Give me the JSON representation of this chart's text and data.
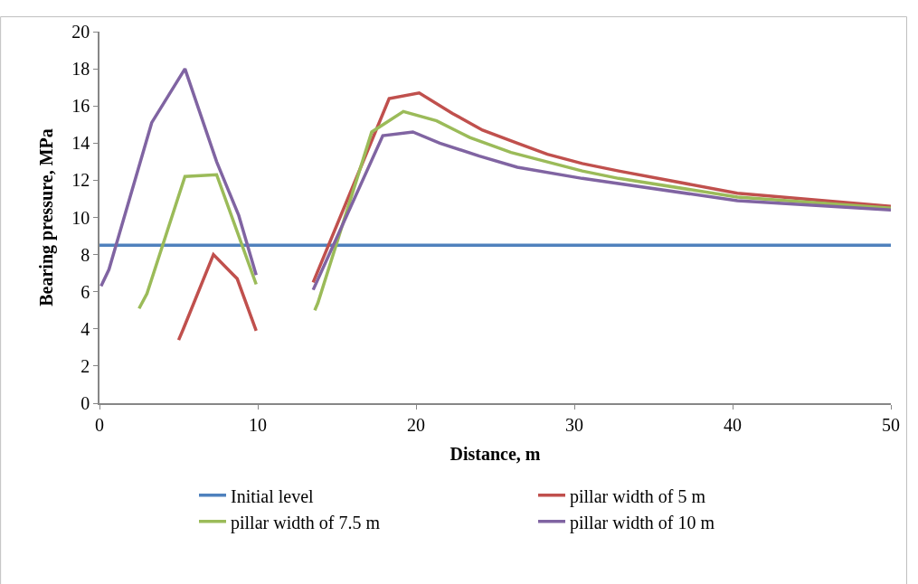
{
  "chart_data": {
    "type": "line",
    "xlabel": "Distance, m",
    "ylabel": "Bearing pressure, MPa",
    "xlim": [
      0,
      50
    ],
    "xticks": [
      0,
      10,
      20,
      30,
      40,
      50
    ],
    "ylim": [
      0,
      20
    ],
    "yticks": [
      0,
      2,
      4,
      6,
      8,
      10,
      12,
      14,
      16,
      18,
      20
    ],
    "legend": "bottom",
    "marker": "none",
    "line_style": "solid",
    "series": [
      {
        "name": "Initial level",
        "color": "#4f81bd",
        "x": [
          0,
          50
        ],
        "values": [
          8.5,
          8.5
        ]
      },
      {
        "name": "pillar width of 5 m",
        "color": "#c0504d",
        "x": [
          5.0,
          5.3,
          7.2,
          8.7,
          9.9,
          12,
          13.5,
          18.3,
          20.2,
          22.3,
          24.2,
          26.4,
          28.3,
          30.5,
          32.8,
          40.3,
          50
        ],
        "values": [
          3.4,
          4.0,
          8.0,
          6.7,
          3.9,
          null,
          6.5,
          16.4,
          16.7,
          15.6,
          14.7,
          14.0,
          13.4,
          12.9,
          12.5,
          11.3,
          10.6
        ]
      },
      {
        "name": "pillar width of 7.5 m",
        "color": "#9bbb59",
        "x": [
          2.5,
          3.0,
          5.4,
          7.4,
          9.9,
          12,
          13.6,
          13.8,
          17.2,
          19.2,
          21.3,
          23.4,
          26.0,
          30.5,
          32.8,
          40.3,
          50
        ],
        "values": [
          5.1,
          5.9,
          12.2,
          12.3,
          6.4,
          null,
          5.0,
          5.4,
          14.6,
          15.7,
          15.2,
          14.3,
          13.5,
          12.5,
          12.1,
          11.1,
          10.5
        ]
      },
      {
        "name": "pillar width of 10 m",
        "color": "#8064a2",
        "x": [
          0.1,
          0.6,
          3.3,
          5.4,
          7.4,
          8.8,
          9.9,
          12,
          13.5,
          17.9,
          19.8,
          21.5,
          24.0,
          26.4,
          30.5,
          40.3,
          50
        ],
        "values": [
          6.3,
          7.2,
          15.1,
          18.0,
          13.0,
          10.1,
          6.9,
          null,
          6.1,
          14.4,
          14.6,
          14.0,
          13.3,
          12.7,
          12.1,
          10.9,
          10.4
        ]
      }
    ]
  }
}
